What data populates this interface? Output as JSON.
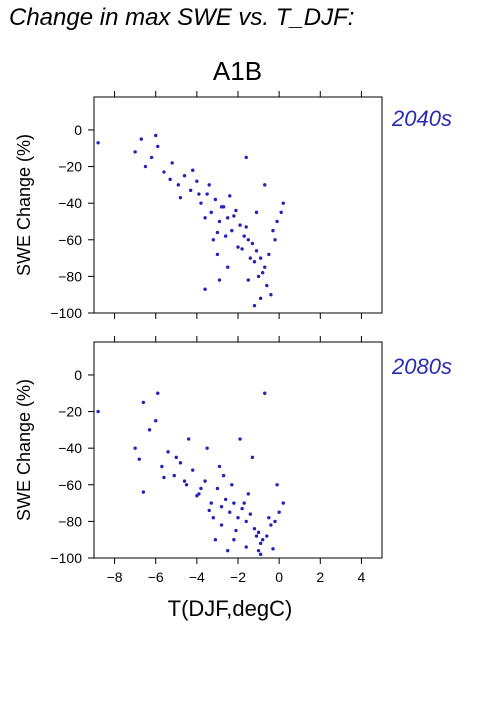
{
  "title": "Change in max SWE vs. T_DJF:",
  "scenario": "A1B",
  "colors": {
    "points": "#2222bb",
    "period_label": "#2a2ab0",
    "axes": "#000000"
  },
  "chart_data": [
    {
      "type": "scatter",
      "period_label": "2040s",
      "ylabel": "SWE Change (%)",
      "xlabel": "",
      "xlim": [
        -9,
        5
      ],
      "ylim": [
        -100,
        18
      ],
      "x_ticks": [
        -8,
        -6,
        -4,
        -2,
        0,
        2,
        4
      ],
      "y_ticks": [
        0,
        -20,
        -40,
        -60,
        -80,
        -100
      ],
      "y_tick_labels": [
        "0",
        "-20",
        "-40",
        "-60",
        "-80",
        "-100"
      ],
      "x_tick_labels_shown": false,
      "series": [
        {
          "color": "#2222bb",
          "x": [
            -8.8,
            -7.0,
            -6.7,
            -6.5,
            -6.2,
            -5.9,
            -5.6,
            -5.2,
            -4.9,
            -4.6,
            -4.3,
            -4.0,
            -3.8,
            -3.5,
            -3.3,
            -3.1,
            -2.9,
            -2.7,
            -2.5,
            -2.3,
            -2.1,
            -1.9,
            -1.7,
            -1.5,
            -1.3,
            -1.1,
            -0.9,
            -0.7,
            -0.5,
            -0.3,
            -0.1,
            0.1,
            0.2,
            -6.0,
            -5.3,
            -4.8,
            -4.2,
            -3.6,
            -3.0,
            -2.4,
            -1.8,
            -1.2,
            -0.6,
            -0.2,
            -3.4,
            -2.8,
            -2.2,
            -1.6,
            -1.0,
            -0.4,
            -3.9,
            -3.2,
            -2.6,
            -2.0,
            -1.4,
            -0.8,
            -1.2,
            -0.9,
            -1.5,
            -2.5,
            -3.0,
            -3.6,
            -2.9,
            -1.1,
            -0.7,
            -1.6
          ],
          "y": [
            -7,
            -12,
            -5,
            -20,
            -15,
            -9,
            -23,
            -18,
            -30,
            -25,
            -33,
            -28,
            -40,
            -35,
            -45,
            -38,
            -50,
            -42,
            -48,
            -55,
            -44,
            -52,
            -58,
            -60,
            -62,
            -66,
            -70,
            -75,
            -68,
            -55,
            -50,
            -45,
            -40,
            -3,
            -27,
            -37,
            -22,
            -48,
            -56,
            -36,
            -65,
            -72,
            -85,
            -60,
            -30,
            -42,
            -47,
            -53,
            -80,
            -90,
            -35,
            -60,
            -58,
            -64,
            -70,
            -78,
            -96,
            -92,
            -82,
            -75,
            -68,
            -87,
            -82,
            -45,
            -30,
            -15
          ]
        }
      ]
    },
    {
      "type": "scatter",
      "period_label": "2080s",
      "ylabel": "SWE Change (%)",
      "xlabel": "T(DJF,degC)",
      "xlim": [
        -9,
        5
      ],
      "ylim": [
        -100,
        18
      ],
      "x_ticks": [
        -8,
        -6,
        -4,
        -2,
        0,
        2,
        4
      ],
      "x_tick_labels": [
        "-8",
        "-6",
        "-4",
        "-2",
        "0",
        "2",
        "4"
      ],
      "y_ticks": [
        0,
        -20,
        -40,
        -60,
        -80,
        -100
      ],
      "y_tick_labels": [
        "0",
        "-20",
        "-40",
        "-60",
        "-80",
        "-100"
      ],
      "x_tick_labels_shown": true,
      "series": [
        {
          "color": "#2222bb",
          "x": [
            -8.8,
            -7.0,
            -6.8,
            -6.6,
            -6.3,
            -6.0,
            -5.7,
            -5.4,
            -5.1,
            -4.8,
            -4.5,
            -4.2,
            -3.9,
            -3.6,
            -3.3,
            -3.0,
            -2.8,
            -2.6,
            -2.4,
            -2.2,
            -2.0,
            -1.8,
            -1.6,
            -1.4,
            -1.2,
            -1.0,
            -0.8,
            -0.6,
            -0.4,
            -0.2,
            0.0,
            0.2,
            -5.9,
            -5.0,
            -4.4,
            -3.8,
            -3.2,
            -2.7,
            -2.1,
            -1.5,
            -0.9,
            -0.3,
            -3.5,
            -2.9,
            -2.3,
            -1.7,
            -1.1,
            -0.5,
            -4.0,
            -3.4,
            -2.8,
            -2.2,
            -1.6,
            -1.0,
            -0.7,
            -6.6,
            -5.6,
            -4.6,
            -3.1,
            -2.5,
            -1.9,
            -1.3,
            -0.1,
            -0.9
          ],
          "y": [
            -20,
            -40,
            -46,
            -15,
            -30,
            -25,
            -50,
            -42,
            -55,
            -48,
            -60,
            -52,
            -65,
            -58,
            -70,
            -62,
            -72,
            -68,
            -75,
            -70,
            -78,
            -73,
            -80,
            -76,
            -84,
            -86,
            -90,
            -88,
            -82,
            -80,
            -75,
            -70,
            -10,
            -45,
            -35,
            -62,
            -78,
            -55,
            -85,
            -65,
            -92,
            -95,
            -40,
            -50,
            -60,
            -70,
            -88,
            -78,
            -66,
            -74,
            -82,
            -90,
            -94,
            -96,
            -10,
            -64,
            -56,
            -58,
            -90,
            -96,
            -35,
            -45,
            -60,
            -98
          ]
        }
      ]
    }
  ]
}
